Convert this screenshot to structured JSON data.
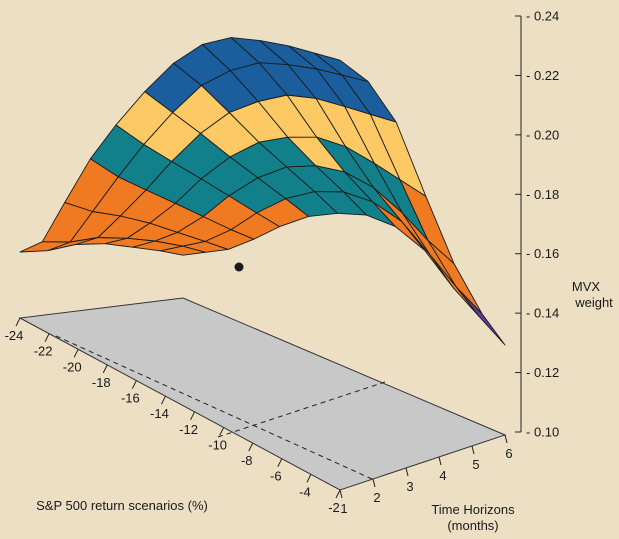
{
  "chart_data": {
    "type": "surface",
    "title": "",
    "colors": {
      "background": "#ecdfc4",
      "floor": "#c8c8c8",
      "bands": [
        "#5b3a9b",
        "#f07a22",
        "#12808a",
        "#fcc965",
        "#1b5e9e"
      ]
    },
    "band_thresholds": [
      0.148,
      0.182,
      0.204,
      0.222
    ],
    "z_axis": {
      "label_line1": "MVX",
      "label_line2": "weight",
      "ticks": [
        "0.24",
        "0.22",
        "0.20",
        "0.18",
        "0.16",
        "0.14",
        "0.12",
        "0.10"
      ],
      "range": [
        0.1,
        0.24
      ]
    },
    "x_axis": {
      "label": "S&P 500 return scenarios (%)",
      "ticks": [
        "-24",
        "-22",
        "-20",
        "-18",
        "-16",
        "-14",
        "-12",
        "-10",
        "-8",
        "-6",
        "-4",
        "-2"
      ]
    },
    "y_axis": {
      "label_line1": "Time Horizons",
      "label_line2": "(months)",
      "ticks": [
        "1",
        "2",
        "3",
        "4",
        "5",
        "6"
      ]
    },
    "grid": {
      "rows_u": [
        0,
        0.07,
        0.14,
        0.22,
        0.3,
        0.39,
        0.48,
        0.57,
        0.66,
        0.75,
        0.84,
        0.92,
        1.0
      ],
      "cols_v": [
        0,
        0.17,
        0.34,
        0.52,
        0.69,
        0.86,
        1.0
      ],
      "z": [
        [
          0.146,
          0.15,
          0.156,
          0.16,
          0.162,
          0.164,
          0.165
        ],
        [
          0.152,
          0.155,
          0.16,
          0.163,
          0.165,
          0.166,
          0.166
        ],
        [
          0.17,
          0.169,
          0.17,
          0.17,
          0.169,
          0.168,
          0.167
        ],
        [
          0.19,
          0.185,
          0.182,
          0.179,
          0.176,
          0.173,
          0.171
        ],
        [
          0.206,
          0.2,
          0.195,
          0.19,
          0.185,
          0.18,
          0.176
        ],
        [
          0.222,
          0.215,
          0.208,
          0.2,
          0.193,
          0.186,
          0.18
        ],
        [
          0.236,
          0.228,
          0.218,
          0.207,
          0.198,
          0.189,
          0.181
        ],
        [
          0.246,
          0.236,
          0.224,
          0.21,
          0.199,
          0.189,
          0.18
        ],
        [
          0.251,
          0.241,
          0.228,
          0.211,
          0.197,
          0.185,
          0.175
        ],
        [
          0.252,
          0.242,
          0.228,
          0.208,
          0.191,
          0.177,
          0.165
        ],
        [
          0.252,
          0.242,
          0.226,
          0.202,
          0.181,
          0.163,
          0.149
        ],
        [
          0.251,
          0.241,
          0.224,
          0.196,
          0.17,
          0.15,
          0.137
        ],
        [
          0.25,
          0.24,
          0.222,
          0.19,
          0.161,
          0.139,
          0.125
        ]
      ]
    },
    "marker": {
      "x_scenario": -10,
      "time_horizon": 1,
      "z": 0.16
    }
  }
}
